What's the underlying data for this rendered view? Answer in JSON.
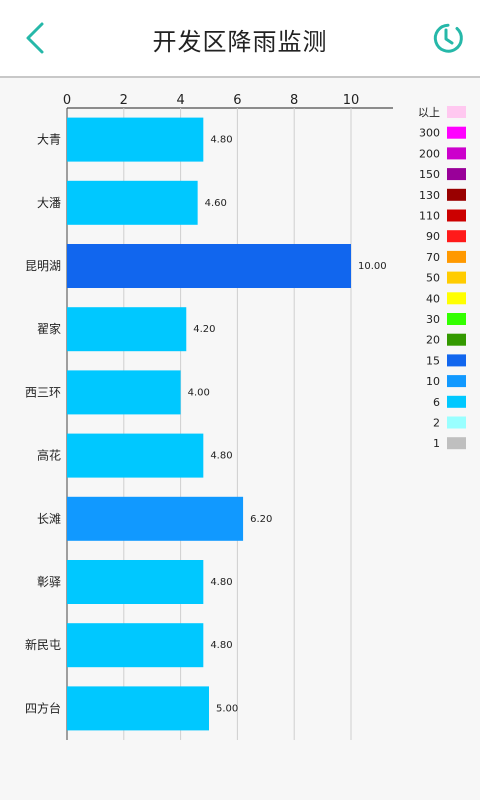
{
  "header": {
    "title": "开发区降雨监测",
    "back_icon": "chevron-left-icon",
    "history_icon": "clock-history-icon",
    "accent_color": "#26b8a9"
  },
  "chart_data": {
    "type": "bar",
    "orientation": "horizontal",
    "x_axis_position": "top",
    "xlim": [
      0,
      10
    ],
    "x_ticks": [
      0,
      2,
      4,
      6,
      8,
      10
    ],
    "grid": true,
    "categories": [
      "大青",
      "大潘",
      "昆明湖",
      "翟家",
      "西三环",
      "高花",
      "长滩",
      "彰驿",
      "新民屯",
      "四方台"
    ],
    "values": [
      4.8,
      4.6,
      10.0,
      4.2,
      4.0,
      4.8,
      6.2,
      4.8,
      4.8,
      5.0
    ],
    "value_labels": [
      "4.80",
      "4.60",
      "10.00",
      "4.20",
      "4.00",
      "4.80",
      "6.20",
      "4.80",
      "4.80",
      "5.00"
    ],
    "bar_colors": [
      "#00c8ff",
      "#00c8ff",
      "#1166ee",
      "#00c8ff",
      "#00c8ff",
      "#00c8ff",
      "#1199ff",
      "#00c8ff",
      "#00c8ff",
      "#00c8ff"
    ],
    "legend_placement": "right",
    "legend": [
      {
        "label": "以上",
        "color": "#ffc8f0"
      },
      {
        "label": "300",
        "color": "#ff00ff"
      },
      {
        "label": "200",
        "color": "#cc00cc"
      },
      {
        "label": "150",
        "color": "#990099"
      },
      {
        "label": "130",
        "color": "#990000"
      },
      {
        "label": "110",
        "color": "#cc0000"
      },
      {
        "label": "90",
        "color": "#ff1a1a"
      },
      {
        "label": "70",
        "color": "#ff9900"
      },
      {
        "label": "50",
        "color": "#ffcc00"
      },
      {
        "label": "40",
        "color": "#ffff00"
      },
      {
        "label": "30",
        "color": "#33ff00"
      },
      {
        "label": "20",
        "color": "#339900"
      },
      {
        "label": "15",
        "color": "#1166ee"
      },
      {
        "label": "10",
        "color": "#1199ff"
      },
      {
        "label": "6",
        "color": "#00c8ff"
      },
      {
        "label": "2",
        "color": "#99ffff"
      },
      {
        "label": "1",
        "color": "#bfbfbf"
      }
    ]
  }
}
